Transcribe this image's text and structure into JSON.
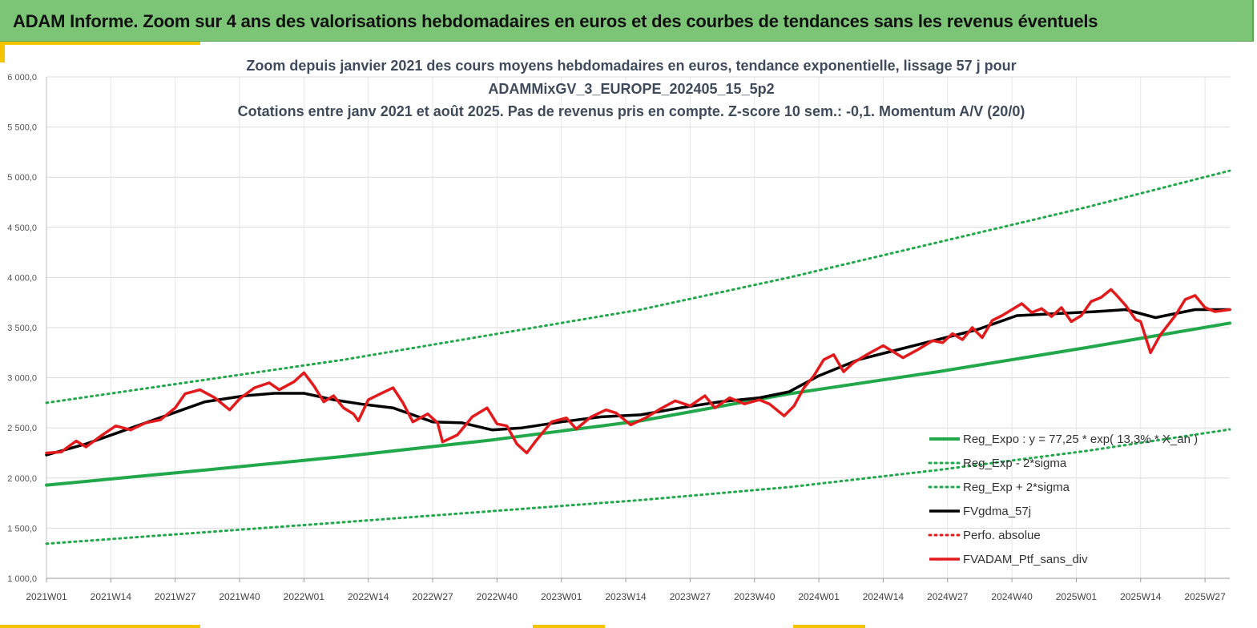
{
  "banner": {
    "title": "ADAM Informe. Zoom sur 4 ans des valorisations hebdomadaires en euros et des courbes de tendances sans les revenus éventuels"
  },
  "chart_data": {
    "type": "line",
    "title_lines": [
      "Zoom depuis janvier 2021 des cours moyens hebdomadaires  en euros, tendance exponentielle, lissage 57 j pour",
      "ADAMMixGV_3_EUROPE_202405_15_5p2",
      "Cotations entre janv 2021 et août 2025. Pas de revenus pris en compte. Z-score 10 sem.: -0,1. Momentum A/V (20/0)"
    ],
    "ylim": [
      1000,
      6000
    ],
    "y_ticks": [
      "1 000,0",
      "1 500,0",
      "2 000,0",
      "2 500,0",
      "3 000,0",
      "3 500,0",
      "4 000,0",
      "4 500,0",
      "5 000,0",
      "5 500,0",
      "6 000,0"
    ],
    "x_week_range": [
      0,
      239
    ],
    "x_ticks": [
      {
        "label": "2021W01",
        "week": 0
      },
      {
        "label": "2021W14",
        "week": 13
      },
      {
        "label": "2021W27",
        "week": 26
      },
      {
        "label": "2021W40",
        "week": 39
      },
      {
        "label": "2022W01",
        "week": 52
      },
      {
        "label": "2022W14",
        "week": 65
      },
      {
        "label": "2022W27",
        "week": 78
      },
      {
        "label": "2022W40",
        "week": 91
      },
      {
        "label": "2023W01",
        "week": 104
      },
      {
        "label": "2023W14",
        "week": 117
      },
      {
        "label": "2023W27",
        "week": 130
      },
      {
        "label": "2023W40",
        "week": 143
      },
      {
        "label": "2024W01",
        "week": 156
      },
      {
        "label": "2024W14",
        "week": 169
      },
      {
        "label": "2024W27",
        "week": 182
      },
      {
        "label": "2024W40",
        "week": 195
      },
      {
        "label": "2025W01",
        "week": 208
      },
      {
        "label": "2025W14",
        "week": 221
      },
      {
        "label": "2025W27",
        "week": 234
      }
    ],
    "series": [
      {
        "name": "Reg_Expo : y = 77,25 * exp( 13,3% * X_an )",
        "color": "#21a84a",
        "style": "solid",
        "width": 4,
        "points": [
          [
            0,
            1930
          ],
          [
            30,
            2070
          ],
          [
            60,
            2215
          ],
          [
            90,
            2380
          ],
          [
            120,
            2570
          ],
          [
            150,
            2840
          ],
          [
            180,
            3060
          ],
          [
            210,
            3300
          ],
          [
            239,
            3545
          ]
        ]
      },
      {
        "name": "Reg_Exp - 2*sigma",
        "color": "#21a84a",
        "style": "dotted",
        "width": 3,
        "points": [
          [
            0,
            1345
          ],
          [
            60,
            1560
          ],
          [
            120,
            1780
          ],
          [
            150,
            1910
          ],
          [
            180,
            2080
          ],
          [
            210,
            2270
          ],
          [
            239,
            2485
          ]
        ]
      },
      {
        "name": "Reg_Exp + 2*sigma",
        "color": "#21a84a",
        "style": "dotted",
        "width": 3,
        "points": [
          [
            0,
            2750
          ],
          [
            60,
            3180
          ],
          [
            120,
            3680
          ],
          [
            150,
            4000
          ],
          [
            180,
            4350
          ],
          [
            210,
            4700
          ],
          [
            239,
            5065
          ]
        ]
      },
      {
        "name": "FVgdma_57j",
        "color": "#000000",
        "style": "solid",
        "width": 3.5,
        "points": [
          [
            0,
            2230
          ],
          [
            8,
            2340
          ],
          [
            16,
            2480
          ],
          [
            24,
            2620
          ],
          [
            32,
            2760
          ],
          [
            40,
            2820
          ],
          [
            46,
            2845
          ],
          [
            52,
            2845
          ],
          [
            58,
            2780
          ],
          [
            64,
            2735
          ],
          [
            70,
            2700
          ],
          [
            74,
            2630
          ],
          [
            78,
            2560
          ],
          [
            84,
            2550
          ],
          [
            90,
            2480
          ],
          [
            96,
            2500
          ],
          [
            104,
            2560
          ],
          [
            112,
            2610
          ],
          [
            120,
            2630
          ],
          [
            128,
            2700
          ],
          [
            136,
            2760
          ],
          [
            144,
            2800
          ],
          [
            150,
            2860
          ],
          [
            156,
            3020
          ],
          [
            164,
            3180
          ],
          [
            172,
            3280
          ],
          [
            180,
            3380
          ],
          [
            188,
            3480
          ],
          [
            196,
            3620
          ],
          [
            204,
            3640
          ],
          [
            212,
            3660
          ],
          [
            218,
            3680
          ],
          [
            224,
            3600
          ],
          [
            232,
            3680
          ],
          [
            239,
            3680
          ]
        ]
      },
      {
        "name": "Perfo. absolue",
        "color": "#e31a1c",
        "style": "dotted",
        "width": 3,
        "points": []
      },
      {
        "name": "FVADAM_Ptf_sans_div",
        "color": "#e31a1c",
        "style": "solid",
        "width": 3.5,
        "points": [
          [
            0,
            2250
          ],
          [
            3,
            2260
          ],
          [
            6,
            2370
          ],
          [
            8,
            2310
          ],
          [
            11,
            2420
          ],
          [
            14,
            2520
          ],
          [
            17,
            2480
          ],
          [
            20,
            2550
          ],
          [
            23,
            2580
          ],
          [
            26,
            2700
          ],
          [
            28,
            2840
          ],
          [
            31,
            2880
          ],
          [
            34,
            2800
          ],
          [
            37,
            2680
          ],
          [
            39,
            2790
          ],
          [
            42,
            2900
          ],
          [
            45,
            2950
          ],
          [
            47,
            2880
          ],
          [
            50,
            2960
          ],
          [
            52,
            3050
          ],
          [
            54,
            2920
          ],
          [
            56,
            2760
          ],
          [
            58,
            2820
          ],
          [
            60,
            2700
          ],
          [
            62,
            2640
          ],
          [
            63,
            2570
          ],
          [
            65,
            2780
          ],
          [
            67,
            2830
          ],
          [
            70,
            2900
          ],
          [
            72,
            2750
          ],
          [
            74,
            2560
          ],
          [
            77,
            2640
          ],
          [
            79,
            2550
          ],
          [
            80,
            2360
          ],
          [
            83,
            2430
          ],
          [
            86,
            2610
          ],
          [
            89,
            2700
          ],
          [
            91,
            2540
          ],
          [
            93,
            2520
          ],
          [
            95,
            2340
          ],
          [
            97,
            2250
          ],
          [
            99,
            2380
          ],
          [
            102,
            2560
          ],
          [
            105,
            2600
          ],
          [
            107,
            2490
          ],
          [
            110,
            2610
          ],
          [
            113,
            2680
          ],
          [
            115,
            2650
          ],
          [
            118,
            2530
          ],
          [
            121,
            2600
          ],
          [
            124,
            2690
          ],
          [
            127,
            2770
          ],
          [
            130,
            2720
          ],
          [
            133,
            2820
          ],
          [
            135,
            2700
          ],
          [
            138,
            2800
          ],
          [
            141,
            2740
          ],
          [
            144,
            2780
          ],
          [
            146,
            2740
          ],
          [
            149,
            2620
          ],
          [
            151,
            2720
          ],
          [
            153,
            2900
          ],
          [
            155,
            3020
          ],
          [
            157,
            3180
          ],
          [
            159,
            3230
          ],
          [
            161,
            3060
          ],
          [
            163,
            3150
          ],
          [
            166,
            3240
          ],
          [
            169,
            3320
          ],
          [
            171,
            3260
          ],
          [
            173,
            3200
          ],
          [
            176,
            3280
          ],
          [
            179,
            3370
          ],
          [
            181,
            3350
          ],
          [
            183,
            3440
          ],
          [
            185,
            3380
          ],
          [
            187,
            3500
          ],
          [
            189,
            3400
          ],
          [
            191,
            3570
          ],
          [
            193,
            3620
          ],
          [
            195,
            3680
          ],
          [
            197,
            3740
          ],
          [
            199,
            3650
          ],
          [
            201,
            3690
          ],
          [
            203,
            3610
          ],
          [
            205,
            3700
          ],
          [
            207,
            3560
          ],
          [
            209,
            3620
          ],
          [
            211,
            3760
          ],
          [
            213,
            3800
          ],
          [
            215,
            3880
          ],
          [
            216,
            3830
          ],
          [
            218,
            3720
          ],
          [
            220,
            3580
          ],
          [
            221,
            3560
          ],
          [
            223,
            3250
          ],
          [
            225,
            3430
          ],
          [
            228,
            3620
          ],
          [
            230,
            3780
          ],
          [
            232,
            3820
          ],
          [
            234,
            3700
          ],
          [
            236,
            3660
          ],
          [
            239,
            3680
          ]
        ]
      }
    ],
    "legend": {
      "position": "bottom-right"
    }
  }
}
